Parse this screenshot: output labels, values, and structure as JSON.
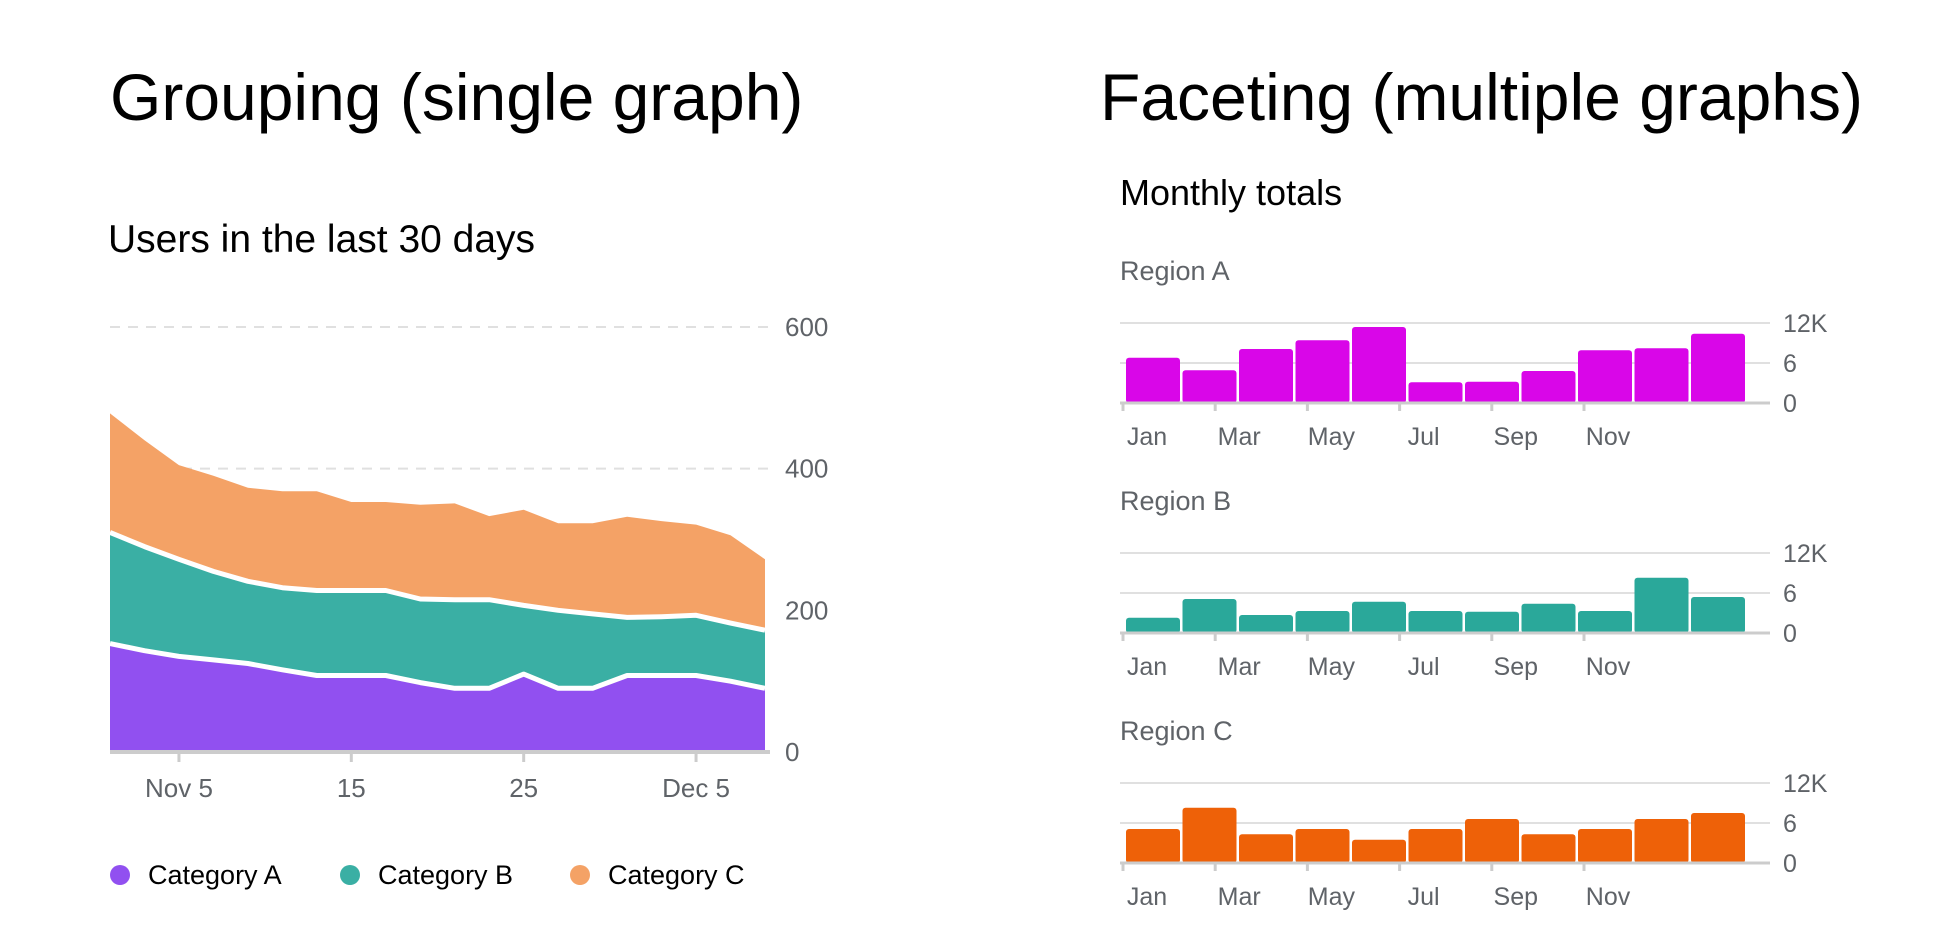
{
  "headings": {
    "left": "Grouping (single graph)",
    "right": "Faceting (multiple graphs)"
  },
  "colors": {
    "category_a": "#9150f0",
    "category_b": "#3aafa4",
    "category_c": "#f4a266",
    "region_a": "#d906e8",
    "region_b": "#2aa89a",
    "region_c": "#ee6108",
    "grid": "#e0e0e0",
    "axis": "#cccccc",
    "tick_text": "#5f6368"
  },
  "chart_data": [
    {
      "type": "area",
      "stacked": true,
      "title": "Users in the last 30 days",
      "xlabel": "",
      "ylabel": "",
      "x": [
        1,
        3,
        5,
        7,
        9,
        11,
        13,
        15,
        17,
        19,
        21,
        23,
        25,
        27,
        29,
        31,
        33,
        35,
        37,
        39
      ],
      "x_ticks": [
        {
          "x": 5,
          "label": "Nov 5"
        },
        {
          "x": 15,
          "label": "15"
        },
        {
          "x": 25,
          "label": "25"
        },
        {
          "x": 35,
          "label": "Dec 5"
        }
      ],
      "ylim": [
        0,
        600
      ],
      "y_ticks": [
        0,
        200,
        400,
        600
      ],
      "y_tick_labels": [
        "0",
        "200",
        "400",
        "600"
      ],
      "gridlines": [
        400,
        600
      ],
      "series": [
        {
          "name": "Category A",
          "color_key": "category_a",
          "values": [
            153,
            143,
            135,
            130,
            125,
            116,
            108,
            108,
            108,
            98,
            90,
            90,
            110,
            90,
            90,
            108,
            108,
            108,
            100,
            90
          ]
        },
        {
          "name": "Category B",
          "color_key": "category_b",
          "values": [
            157,
            147,
            137,
            125,
            116,
            116,
            120,
            120,
            120,
            118,
            125,
            125,
            97,
            110,
            105,
            82,
            83,
            85,
            82,
            82
          ]
        },
        {
          "name": "Category C",
          "color_key": "category_c",
          "values": [
            168,
            150,
            133,
            135,
            132,
            136,
            140,
            125,
            125,
            133,
            136,
            118,
            135,
            123,
            128,
            142,
            135,
            128,
            124,
            100
          ]
        }
      ],
      "legend": {
        "position": "bottom",
        "items": [
          "Category A",
          "Category B",
          "Category C"
        ]
      }
    },
    {
      "type": "bar",
      "title": "Monthly totals",
      "facets": [
        {
          "name": "Region A",
          "color_key": "region_a",
          "values": [
            6.8,
            4.9,
            8.1,
            9.4,
            11.4,
            3.1,
            3.2,
            4.8,
            7.9,
            8.2,
            10.4
          ]
        },
        {
          "name": "Region B",
          "color_key": "region_b",
          "values": [
            2.3,
            5.1,
            2.7,
            3.3,
            4.7,
            3.3,
            3.2,
            4.4,
            3.3,
            8.3,
            5.4
          ]
        },
        {
          "name": "Region C",
          "color_key": "region_c",
          "values": [
            5.1,
            8.3,
            4.3,
            5.1,
            3.5,
            5.1,
            6.6,
            4.3,
            5.1,
            6.6,
            7.5
          ]
        }
      ],
      "x_tick_labels": [
        "Jan",
        "Mar",
        "May",
        "Jul",
        "Sep",
        "Nov"
      ],
      "x_tick_months": [
        1,
        3,
        5,
        7,
        9,
        11
      ],
      "ylim": [
        0,
        12
      ],
      "y_ticks": [
        0,
        6,
        12
      ],
      "y_tick_labels": [
        "0",
        "6",
        "12K"
      ]
    }
  ]
}
